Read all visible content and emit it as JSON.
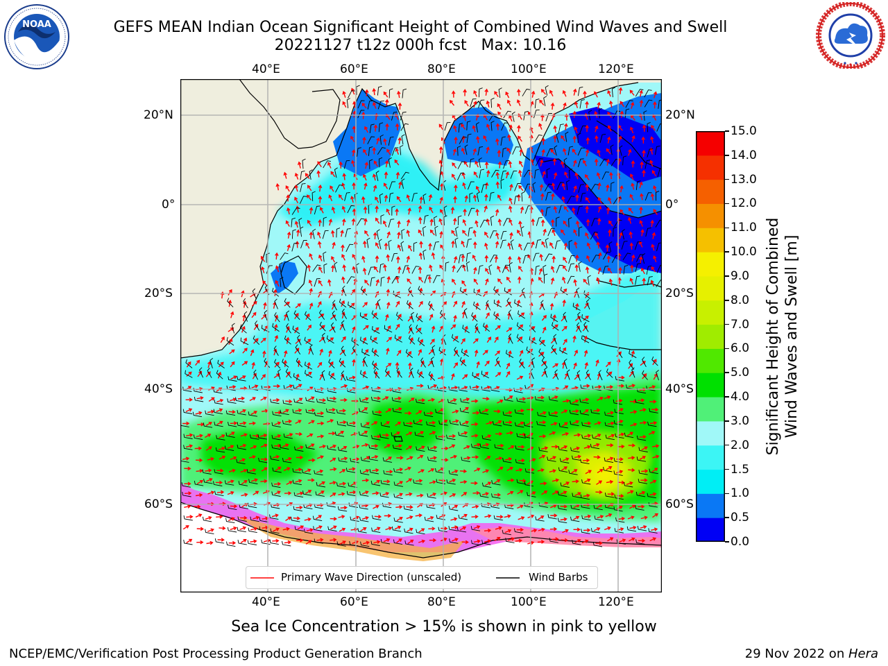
{
  "header": {
    "title_line1": "GEFS MEAN Indian Ocean Significant Height of Combined Wind Waves and Swell",
    "title_line2": "20221127 t12z 000h fcst   Max: 10.16"
  },
  "logos": {
    "left": {
      "name": "NOAA",
      "text": "NOAA",
      "ring_text": "NATIONAL OCEANIC AND ATMOSPHERIC ADMINISTRATION · U.S. DEPARTMENT OF COMMERCE"
    },
    "right": {
      "name": "National Weather Service",
      "ring_text": "NATIONAL WEATHER SERVICE"
    }
  },
  "map": {
    "lon_labels": [
      "40°E",
      "60°E",
      "80°E",
      "100°E",
      "120°E"
    ],
    "lat_labels": [
      "20°N",
      "0°",
      "20°S",
      "40°S",
      "60°S"
    ],
    "land_color": "#efeede",
    "grid_color": "#b0b0b0"
  },
  "colorbar": {
    "ticks": [
      "0.0",
      "0.5",
      "1.0",
      "1.5",
      "2.0",
      "3.0",
      "4.0",
      "5.0",
      "6.0",
      "7.0",
      "8.0",
      "9.0",
      "10.0",
      "11.0",
      "12.0",
      "13.0",
      "14.0",
      "15.0"
    ],
    "colors": [
      "#0000f5",
      "#0a78f5",
      "#00eef5",
      "#3cf5f5",
      "#a0f8f8",
      "#50f078",
      "#00e000",
      "#50e800",
      "#a0ec00",
      "#c8f000",
      "#e6f000",
      "#f5f000",
      "#f5c000",
      "#f59000",
      "#f56000",
      "#f53000",
      "#f50000"
    ],
    "label_line1": "Significant Height of Combined",
    "label_line2": "Wind Waves and Swell [m]"
  },
  "legend": {
    "wave_direction": "Primary Wave Direction (unscaled)",
    "wave_color": "#ff0000",
    "wind_barbs": "Wind Barbs"
  },
  "caption": "Sea Ice Concentration > 15% is shown in pink to yellow",
  "footer": {
    "left": "NCEP/EMC/Verification Post Processing Product Generation Branch",
    "right_prefix": "29 Nov 2022 on ",
    "right_host": "Hera"
  }
}
